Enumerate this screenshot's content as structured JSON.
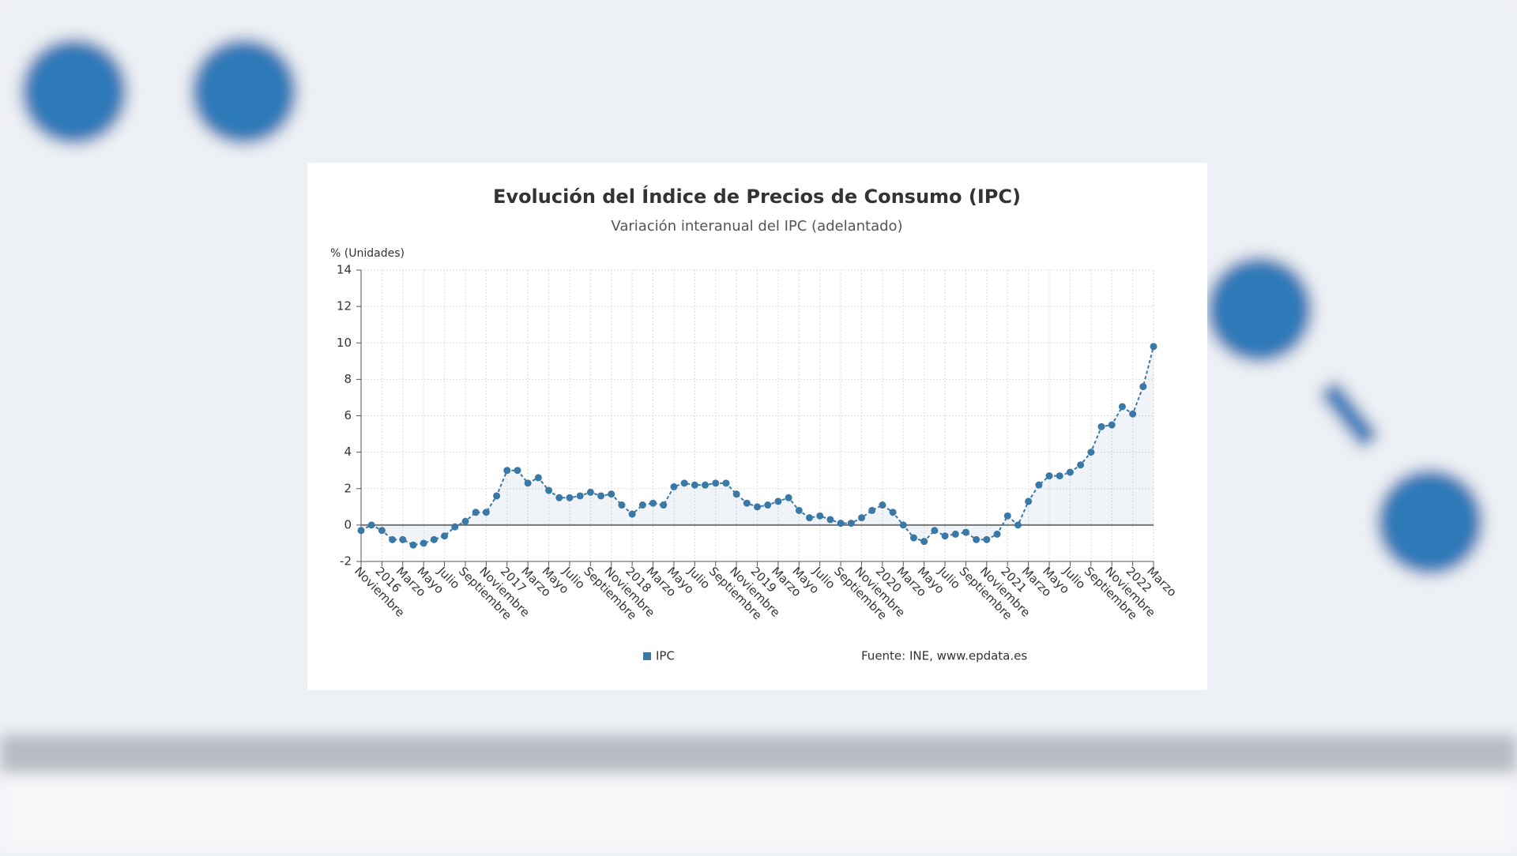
{
  "chart_data": {
    "type": "line",
    "title": "Evolución del Índice de Precios de Consumo (IPC)",
    "subtitle": "Variación interanual del IPC (adelantado)",
    "y_label": "% (Unidades)",
    "source": "Fuente: INE, www.epdata.es",
    "categories": [
      "Noviembre",
      null,
      "2016",
      null,
      "Marzo",
      null,
      "Mayo",
      null,
      "Julio",
      null,
      "Septiembre",
      null,
      "Noviembre",
      null,
      "2017",
      null,
      "Marzo",
      null,
      "Mayo",
      null,
      "Julio",
      null,
      "Septiembre",
      null,
      "Noviembre",
      null,
      "2018",
      null,
      "Marzo",
      null,
      "Mayo",
      null,
      "Julio",
      null,
      "Septiembre",
      null,
      "Noviembre",
      null,
      "2019",
      null,
      "Marzo",
      null,
      "Mayo",
      null,
      "Julio",
      null,
      "Septiembre",
      null,
      "Noviembre",
      null,
      "2020",
      null,
      "Marzo",
      null,
      "Mayo",
      null,
      "Julio",
      null,
      "Septiembre",
      null,
      "Noviembre",
      null,
      "2021",
      null,
      "Marzo",
      null,
      "Mayo",
      null,
      "Julio",
      null,
      "Septiembre",
      null,
      "Noviembre",
      null,
      "2022",
      null,
      "Marzo"
    ],
    "series": [
      {
        "name": "IPC",
        "color": "#3a78a6",
        "values": [
          -0.3,
          0.0,
          -0.3,
          -0.8,
          -0.8,
          -1.1,
          -1.0,
          -0.8,
          -0.6,
          -0.1,
          0.2,
          0.7,
          0.7,
          1.6,
          3.0,
          3.0,
          2.3,
          2.6,
          1.9,
          1.5,
          1.5,
          1.6,
          1.8,
          1.6,
          1.7,
          1.1,
          0.6,
          1.1,
          1.2,
          1.1,
          2.1,
          2.3,
          2.2,
          2.2,
          2.3,
          2.3,
          1.7,
          1.2,
          1.0,
          1.1,
          1.3,
          1.5,
          0.8,
          0.4,
          0.5,
          0.3,
          0.1,
          0.1,
          0.4,
          0.8,
          1.1,
          0.7,
          0.0,
          -0.7,
          -0.9,
          -0.3,
          -0.6,
          -0.5,
          -0.4,
          -0.8,
          -0.8,
          -0.5,
          0.5,
          0.0,
          1.3,
          2.2,
          2.7,
          2.7,
          2.9,
          3.3,
          4.0,
          5.4,
          5.5,
          6.5,
          6.1,
          7.6,
          9.8
        ]
      }
    ],
    "ylim": [
      -2,
      14
    ],
    "yticks": [
      -2,
      0,
      2,
      4,
      6,
      8,
      10,
      12,
      14
    ],
    "grid": true
  }
}
